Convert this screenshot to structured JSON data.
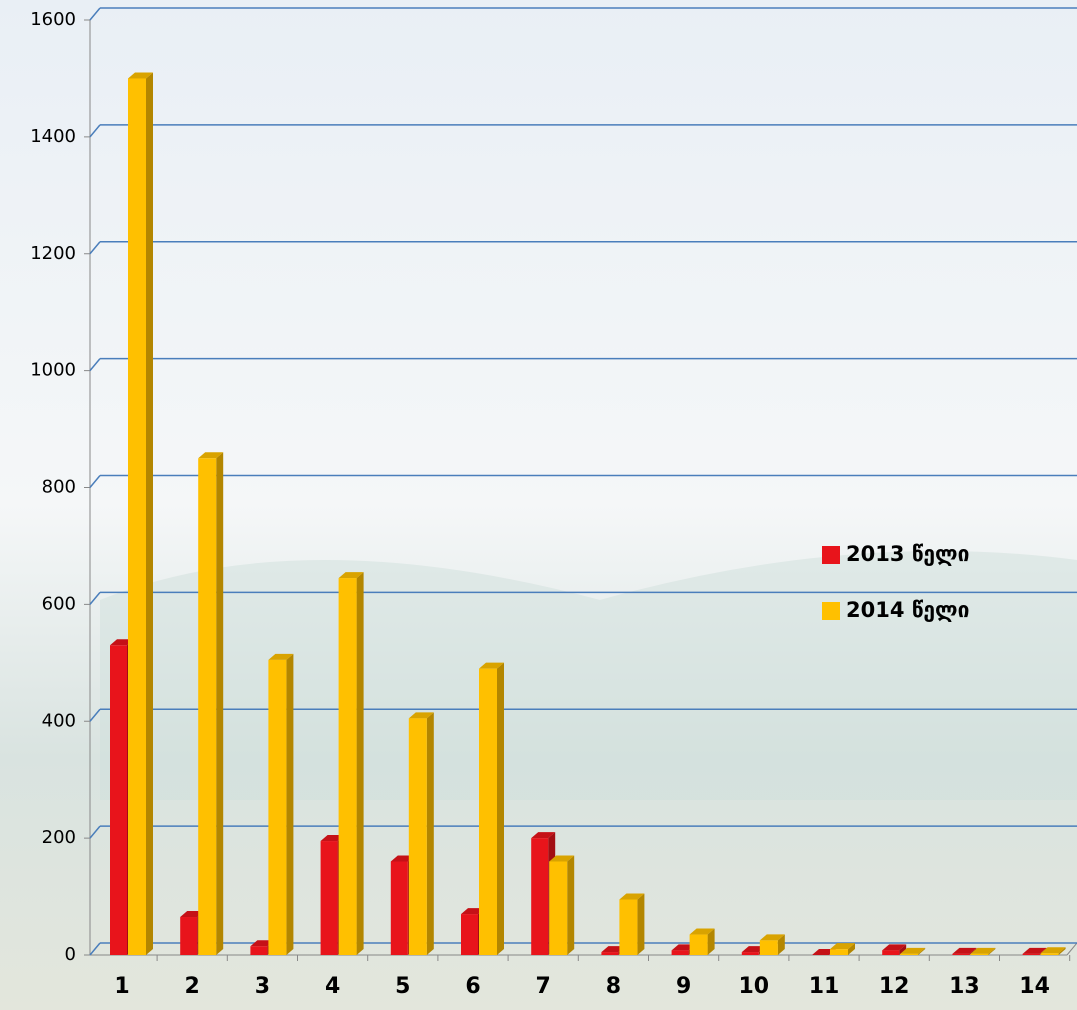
{
  "chart_data": {
    "type": "bar3d",
    "categories": [
      "1",
      "2",
      "3",
      "4",
      "5",
      "6",
      "7",
      "8",
      "9",
      "10",
      "11",
      "12",
      "13",
      "14"
    ],
    "series": [
      {
        "name": "2013 წელი",
        "color": "#e8141b",
        "values": [
          530,
          65,
          15,
          195,
          160,
          70,
          200,
          5,
          8,
          5,
          0,
          8,
          2,
          2
        ]
      },
      {
        "name": "2014 წელი",
        "color": "#ffc000",
        "values": [
          1500,
          850,
          505,
          645,
          405,
          490,
          160,
          95,
          35,
          25,
          10,
          2,
          2,
          3
        ]
      }
    ],
    "ylim": [
      0,
      1600
    ],
    "yticks": [
      0,
      200,
      400,
      600,
      800,
      1000,
      1200,
      1400,
      1600
    ],
    "grid": true,
    "legend": "right"
  }
}
